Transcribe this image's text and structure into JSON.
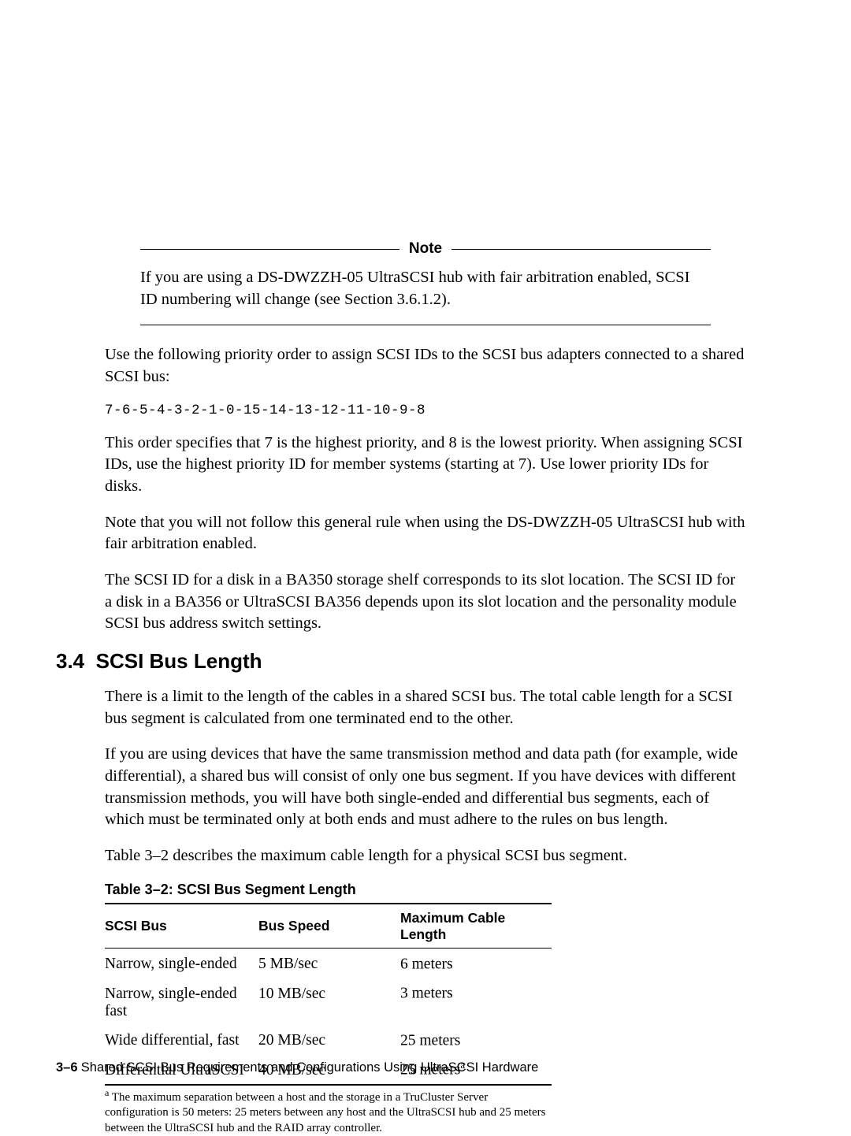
{
  "note": {
    "label": "Note",
    "body": "If you are using a DS-DWZZH-05 UltraSCSI hub with fair arbitration enabled, SCSI ID numbering will change (see Section 3.6.1.2)."
  },
  "paragraphs": {
    "p1": "Use the following priority order to assign SCSI IDs to the SCSI bus adapters connected to a shared SCSI bus:",
    "mono": "7-6-5-4-3-2-1-0-15-14-13-12-11-10-9-8",
    "p2": "This order specifies that 7 is the highest priority, and 8 is the lowest priority. When assigning SCSI IDs, use the highest priority ID for member systems (starting at 7). Use lower priority IDs for disks.",
    "p3": "Note that you will not follow this general rule when using the DS-DWZZH-05 UltraSCSI hub with fair arbitration enabled.",
    "p4": "The SCSI ID for a disk in a BA350 storage shelf corresponds to its slot location. The SCSI ID for a disk in a BA356 or UltraSCSI BA356 depends upon its slot location and the personality module SCSI bus address switch settings."
  },
  "section": {
    "number": "3.4",
    "title": "SCSI Bus Length",
    "p1": "There is a limit to the length of the cables in a shared SCSI bus. The total cable length for a SCSI bus segment is calculated from one terminated end to the other.",
    "p2": "If you are using devices that have the same transmission method and data path (for example, wide differential), a shared bus will consist of only one bus segment. If you have devices with different transmission methods, you will have both single-ended and differential bus segments, each of which must be terminated only at both ends and must adhere to the rules on bus length.",
    "p3": "Table 3–2 describes the maximum cable length for a physical SCSI bus segment."
  },
  "table": {
    "caption": "Table 3–2: SCSI Bus Segment Length",
    "headers": {
      "h1": "SCSI Bus",
      "h2": "Bus Speed",
      "h3": "Maximum Cable Length"
    },
    "rows": [
      {
        "c1": "Narrow, single-ended",
        "c2": "5 MB/sec",
        "c3": "6 meters",
        "sup": ""
      },
      {
        "c1": "Narrow, single-ended fast",
        "c2": "10 MB/sec",
        "c3": "3 meters",
        "sup": ""
      },
      {
        "c1": "Wide differential, fast",
        "c2": "20 MB/sec",
        "c3": "25 meters",
        "sup": ""
      },
      {
        "c1": "Differential UltraSCSI",
        "c2": "40 MB/sec",
        "c3": "25 meters",
        "sup": "a"
      }
    ],
    "footnote_marker": "a",
    "footnote": " The maximum separation between a host and the storage in a TruCluster Server configuration is 50 meters: 25 meters between any host and the UltraSCSI hub and 25 meters between the UltraSCSI hub and the RAID array controller."
  },
  "footer": {
    "page_num": "3–6",
    "title": "Shared SCSI Bus Requirements and Configurations Using UltraSCSI Hardware"
  }
}
